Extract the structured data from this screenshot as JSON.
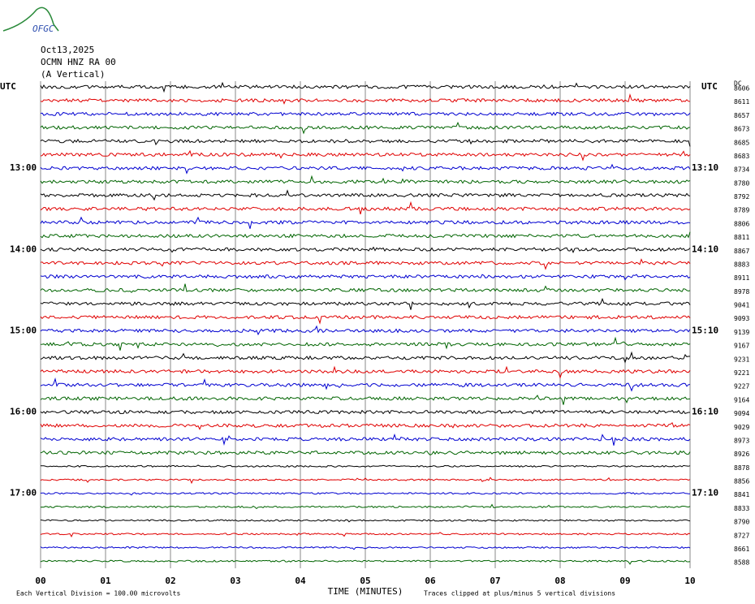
{
  "logo": "OFGC",
  "header": [
    "Oct13,2025",
    "OCMN HNZ RA 00",
    "(A Vertical)"
  ],
  "utc_left": "UTC",
  "utc_right": "UTC",
  "dc_label": "DC",
  "left_times": [
    "13:00",
    "14:00",
    "15:00",
    "16:00",
    "17:00"
  ],
  "right_times": [
    "13:10",
    "14:10",
    "15:10",
    "16:10",
    "17:10"
  ],
  "dc_values": [
    "8606",
    "8611",
    "8657",
    "8673",
    "8685",
    "8683",
    "8734",
    "8780",
    "8792",
    "8789",
    "8806",
    "8811",
    "8867",
    "8883",
    "8911",
    "8978",
    "9041",
    "9093",
    "9139",
    "9167",
    "9231",
    "9221",
    "9227",
    "9164",
    "9094",
    "9029",
    "8973",
    "8926",
    "8878",
    "8856",
    "8841",
    "8833",
    "8790",
    "8727",
    "8661",
    "8588"
  ],
  "trace_colors": [
    "#000000",
    "#e00000",
    "#0000d0",
    "#006400"
  ],
  "x_ticks": [
    "00",
    "01",
    "02",
    "03",
    "04",
    "05",
    "06",
    "07",
    "08",
    "09",
    "10"
  ],
  "x_title": "TIME (MINUTES)",
  "footer_left": "Each Vertical Division =  100.00 microvolts",
  "footer_right": "Traces clipped at plus/minus 5 vertical divisions"
}
